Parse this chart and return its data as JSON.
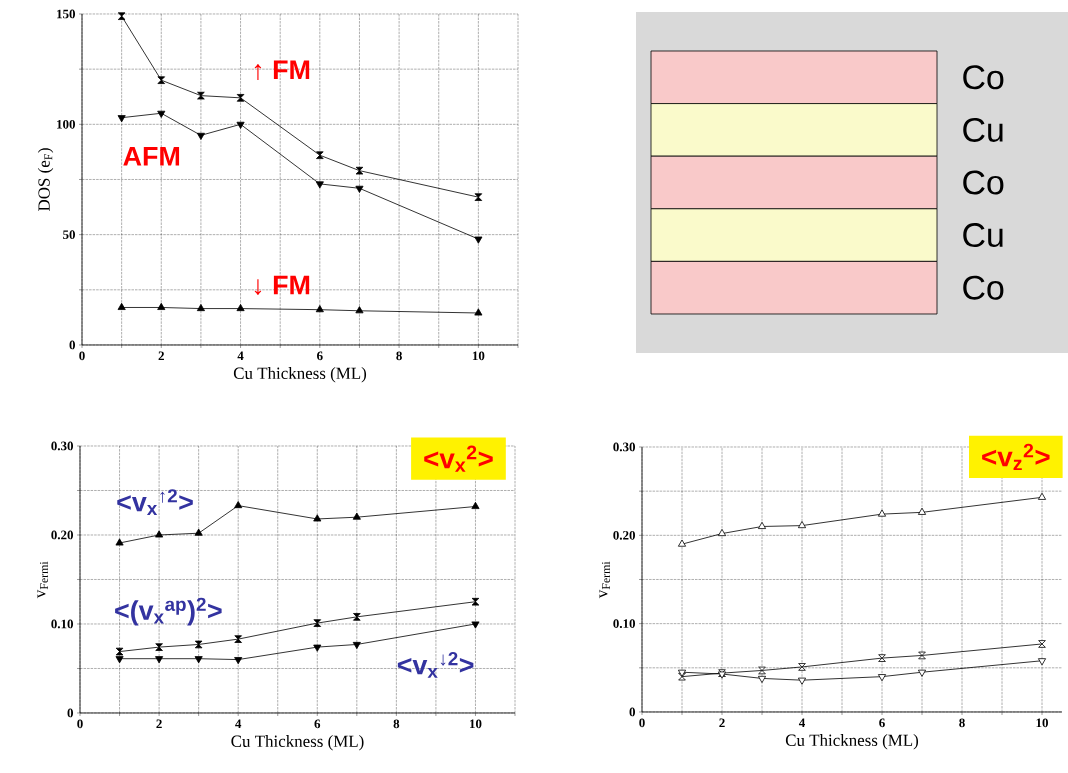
{
  "chart_data": [
    {
      "type": "line",
      "xlabel": "Cu Thickness (ML)",
      "ylabel": "DOS (e$_{F}$)",
      "x": [
        1,
        2,
        3,
        4,
        6,
        7,
        10
      ],
      "xlim": [
        0,
        11
      ],
      "xticks": [
        0,
        {
          "value": 1,
          "label": null
        },
        2,
        {
          "value": 3,
          "label": null
        },
        4,
        {
          "value": 5,
          "label": null
        },
        6,
        {
          "value": 7,
          "label": null
        },
        8,
        {
          "value": 9,
          "label": null
        },
        10,
        {
          "value": 11,
          "label": null
        }
      ],
      "ylim": [
        0,
        150
      ],
      "yticks": [
        0,
        {
          "value": 25,
          "label": null
        },
        50,
        {
          "value": 75,
          "label": null
        },
        100,
        {
          "value": 125,
          "label": null
        },
        150
      ],
      "grid": true,
      "series": [
        {
          "name": "↑ FM",
          "color": "#000000",
          "marker": "diamond",
          "values": [
            149,
            120,
            113,
            112,
            86,
            79,
            67
          ]
        },
        {
          "name": "AFM",
          "color": "#000000",
          "marker": "triangle-down",
          "values": [
            103,
            105,
            95,
            100,
            73,
            71,
            48
          ]
        },
        {
          "name": "↓ FM",
          "color": "#000000",
          "marker": "triangle",
          "values": [
            17,
            17,
            16.5,
            16.5,
            16,
            15.5,
            14.5
          ]
        }
      ]
    },
    {
      "type": "other",
      "annotations": [
        "Co",
        "Cu",
        "Co",
        "Cu",
        "Co"
      ],
      "colors": [
        "#f9c9c9",
        "#fafacb",
        "#f9c9c9",
        "#fafacb",
        "#f9c9c9"
      ]
    },
    {
      "type": "line",
      "title": "<v$_{x}$$^{2}$>",
      "xlabel": "Cu Thickness (ML)",
      "ylabel": "v$_{Fermi}$",
      "x": [
        1,
        2,
        3,
        4,
        6,
        7,
        10
      ],
      "xlim": [
        0,
        11
      ],
      "xticks": [
        0,
        {
          "value": 1,
          "label": null
        },
        2,
        {
          "value": 3,
          "label": null
        },
        4,
        {
          "value": 5,
          "label": null
        },
        6,
        {
          "value": 7,
          "label": null
        },
        8,
        {
          "value": 9,
          "label": null
        },
        10,
        {
          "value": 11,
          "label": null
        }
      ],
      "ylim": [
        0,
        0.3
      ],
      "yticks": [
        0,
        {
          "value": 0.05,
          "label": null
        },
        {
          "value": 0.1,
          "label": "0.10"
        },
        {
          "value": 0.15,
          "label": null
        },
        {
          "value": 0.2,
          "label": "0.20"
        },
        {
          "value": 0.25,
          "label": null
        },
        {
          "value": 0.3,
          "label": "0.30"
        }
      ],
      "grid": true,
      "series": [
        {
          "name": "<v$_{x}$$^{↑2}$>",
          "color": "#000000",
          "marker": "triangle",
          "values": [
            0.191,
            0.2,
            0.202,
            0.233,
            0.218,
            0.22,
            0.232
          ]
        },
        {
          "name": "<(v$_{x}$$^{ap}$)$^{2}$>",
          "color": "#000000",
          "marker": "diamond",
          "values": [
            0.069,
            0.074,
            0.077,
            0.083,
            0.101,
            0.108,
            0.125
          ]
        },
        {
          "name": "<v$_{x}$$^{↓2}$>",
          "color": "#000000",
          "marker": "triangle-down",
          "values": [
            0.061,
            0.061,
            0.061,
            0.06,
            0.074,
            0.077,
            0.1
          ]
        }
      ]
    },
    {
      "type": "line",
      "title": "<v$_{z}$$^{2}$>",
      "xlabel": "Cu Thickness (ML)",
      "ylabel": "v$_{Fermi}$",
      "x": [
        1,
        2,
        3,
        4,
        6,
        7,
        10
      ],
      "xlim": [
        0,
        10.5
      ],
      "xticks": [
        0,
        {
          "value": 1,
          "label": null
        },
        2,
        {
          "value": 3,
          "label": null
        },
        4,
        {
          "value": 5,
          "label": null
        },
        6,
        {
          "value": 7,
          "label": null
        },
        8,
        {
          "value": 9,
          "label": null
        },
        10
      ],
      "ylim": [
        0,
        0.3
      ],
      "yticks": [
        0,
        {
          "value": 0.05,
          "label": null
        },
        {
          "value": 0.1,
          "label": "0.10"
        },
        {
          "value": 0.15,
          "label": null
        },
        {
          "value": 0.2,
          "label": "0.20"
        },
        {
          "value": 0.25,
          "label": null
        },
        {
          "value": 0.3,
          "label": "0.30"
        }
      ],
      "grid": true,
      "series": [
        {
          "color": "#000000",
          "marker": "triangle",
          "values": [
            0.19,
            0.202,
            0.21,
            0.211,
            0.224,
            0.226,
            0.243
          ]
        },
        {
          "color": "#000000",
          "marker": "diamond",
          "values": [
            0.04,
            0.044,
            0.047,
            0.051,
            0.061,
            0.064,
            0.077
          ]
        },
        {
          "color": "#000000",
          "marker": "triangle-down",
          "values": [
            0.045,
            0.043,
            0.038,
            0.036,
            0.04,
            0.045,
            0.058
          ]
        }
      ]
    }
  ]
}
